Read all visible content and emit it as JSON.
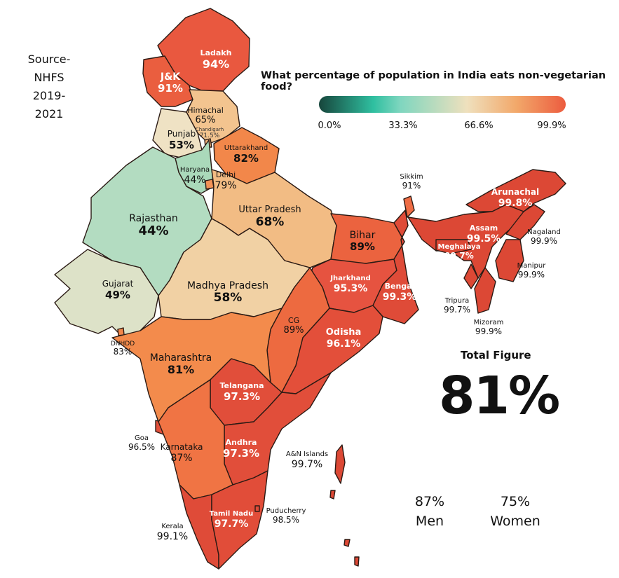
{
  "source": {
    "line1": "Source-",
    "line2": "NHFS",
    "line3": "2019-2021"
  },
  "title": "What percentage of population in India eats non-vegetarian food?",
  "legend": {
    "ticks": [
      "0.0%",
      "33.3%",
      "66.6%",
      "99.9%"
    ],
    "colors": [
      "#17463c",
      "#2fbfa0",
      "#efe0bd",
      "#ec5c3f"
    ]
  },
  "total": {
    "label": "Total Figure",
    "value": "81%"
  },
  "gender": {
    "men": {
      "value": "87%",
      "label": "Men"
    },
    "women": {
      "value": "75%",
      "label": "Women"
    }
  },
  "states": [
    {
      "name": "Ladakh",
      "value": "94%",
      "color": "#e9583f"
    },
    {
      "name": "J&K",
      "value": "91%",
      "color": "#ea5e3f"
    },
    {
      "name": "Himachal",
      "value": "65%",
      "color": "#f3c48f"
    },
    {
      "name": "Chandigarh",
      "value": "71.5%",
      "color": "#f2b37c"
    },
    {
      "name": "Punjab",
      "value": "53%",
      "color": "#efe2c4"
    },
    {
      "name": "Uttarakhand",
      "value": "82%",
      "color": "#f2874a"
    },
    {
      "name": "Haryana",
      "value": "44%",
      "color": "#aad9ba"
    },
    {
      "name": "Delhi",
      "value": "79%",
      "color": "#f29257"
    },
    {
      "name": "Rajasthan",
      "value": "44%",
      "color": "#b3dcc1"
    },
    {
      "name": "Uttar Pradesh",
      "value": "68%",
      "color": "#f2bc84"
    },
    {
      "name": "Gujarat",
      "value": "49%",
      "color": "#dde2c8"
    },
    {
      "name": "Madhya Pradesh",
      "value": "58%",
      "color": "#f1d1a4"
    },
    {
      "name": "Bihar",
      "value": "89%",
      "color": "#eb633f"
    },
    {
      "name": "Jharkhand",
      "value": "95.3%",
      "color": "#e65340"
    },
    {
      "name": "Bengal",
      "value": "99.3%",
      "color": "#df4b38"
    },
    {
      "name": "CG",
      "value": "89%",
      "color": "#ed6a40"
    },
    {
      "name": "Odisha",
      "value": "96.1%",
      "color": "#e34f3a"
    },
    {
      "name": "DNHDD",
      "value": "83%",
      "color": "#f2874a"
    },
    {
      "name": "Maharashtra",
      "value": "81%",
      "color": "#f38b4c"
    },
    {
      "name": "Telangana",
      "value": "97.3%",
      "color": "#e14e3a"
    },
    {
      "name": "Andhra",
      "value": "97.3%",
      "color": "#e14e3a"
    },
    {
      "name": "Goa",
      "value": "96.5%",
      "color": "#e3503b"
    },
    {
      "name": "Karnataka",
      "value": "87%",
      "color": "#f07444"
    },
    {
      "name": "Kerala",
      "value": "99.1%",
      "color": "#df4b38"
    },
    {
      "name": "Tamil Nadu",
      "value": "97.7%",
      "color": "#e14d39"
    },
    {
      "name": "Puducherry",
      "value": "98.5%",
      "color": "#df4b38"
    },
    {
      "name": "A&N Islands",
      "value": "99.7%",
      "color": "#dc4835"
    },
    {
      "name": "Sikkim",
      "value": "91%",
      "color": "#ee6c44"
    },
    {
      "name": "Arunachal",
      "value": "99.8%",
      "color": "#dc4835"
    },
    {
      "name": "Assam",
      "value": "99.5%",
      "color": "#dc4835"
    },
    {
      "name": "Meghalaya",
      "value": "99.7%",
      "color": "#dc4835"
    },
    {
      "name": "Nagaland",
      "value": "99.9%",
      "color": "#dc4835"
    },
    {
      "name": "Manipur",
      "value": "99.9%",
      "color": "#dc4835"
    },
    {
      "name": "Tripura",
      "value": "99.7%",
      "color": "#dc4835"
    },
    {
      "name": "Mizoram",
      "value": "99.9%",
      "color": "#dc4835"
    }
  ]
}
